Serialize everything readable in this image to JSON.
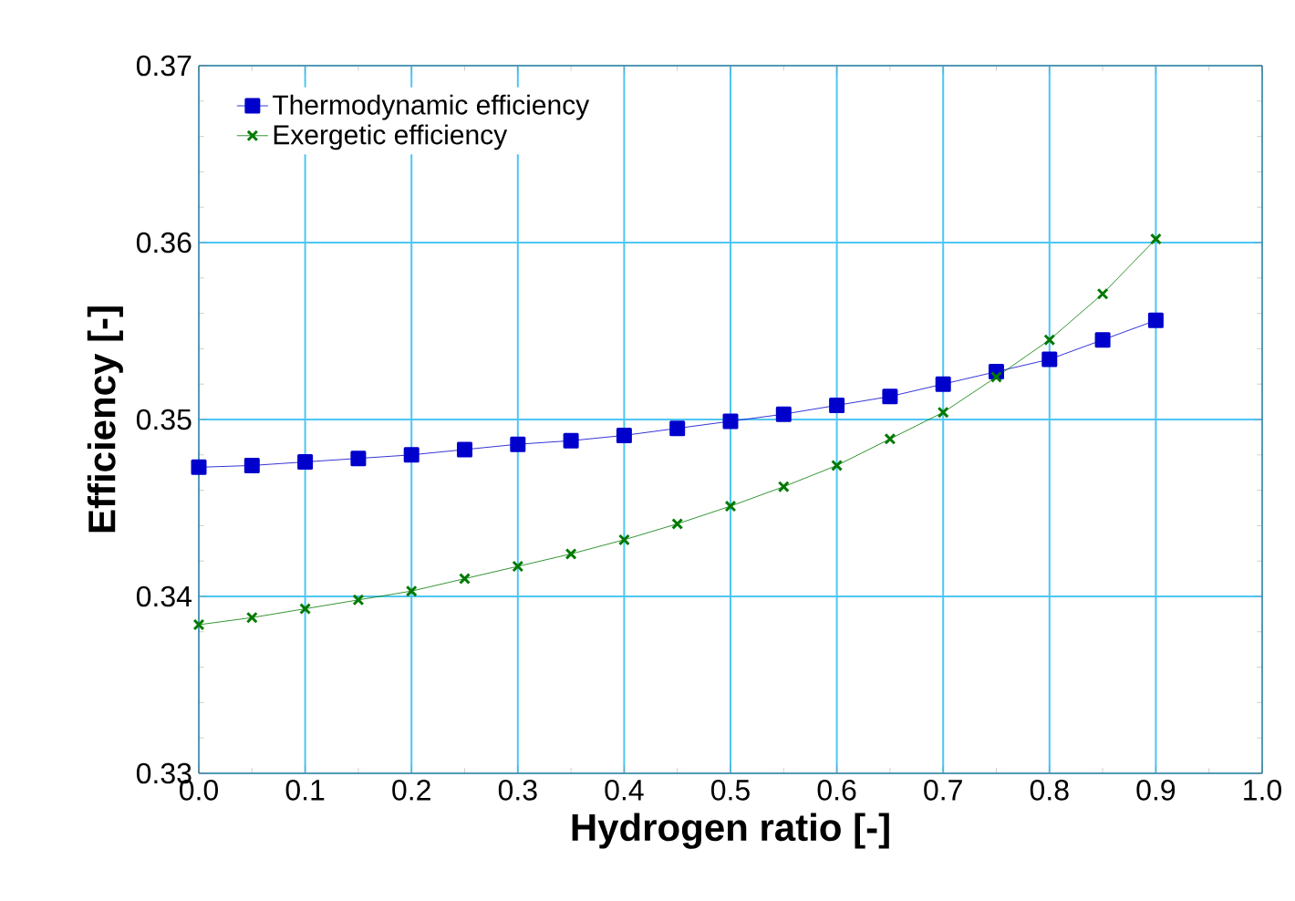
{
  "chart_data": {
    "type": "line",
    "xlabel": "Hydrogen ratio [-]",
    "ylabel": "Efficiency [-]",
    "x": [
      0.0,
      0.05,
      0.1,
      0.15,
      0.2,
      0.25,
      0.3,
      0.35,
      0.4,
      0.45,
      0.5,
      0.55,
      0.6,
      0.65,
      0.7,
      0.75,
      0.8,
      0.85,
      0.9
    ],
    "series": [
      {
        "name": "Thermodynamic efficiency",
        "color": "#0000cc",
        "marker": "square",
        "values": [
          0.3473,
          0.3474,
          0.3476,
          0.3478,
          0.348,
          0.3483,
          0.3486,
          0.3488,
          0.3491,
          0.3495,
          0.3499,
          0.3503,
          0.3508,
          0.3513,
          0.352,
          0.3527,
          0.3534,
          0.3545,
          0.3556
        ]
      },
      {
        "name": "Exergetic efficiency",
        "color": "#007a00",
        "marker": "cross",
        "values": [
          0.3384,
          0.3388,
          0.3393,
          0.3398,
          0.3403,
          0.341,
          0.3417,
          0.3424,
          0.3432,
          0.3441,
          0.3451,
          0.3462,
          0.3474,
          0.3489,
          0.3504,
          0.3524,
          0.3545,
          0.3571,
          0.3602
        ]
      }
    ],
    "xlim": [
      0,
      1
    ],
    "ylim": [
      0.33,
      0.37
    ],
    "xticks": [
      {
        "value": 0,
        "label": "0.0"
      },
      0.1,
      0.2,
      0.3,
      0.4,
      0.5,
      0.6,
      0.7,
      0.8,
      0.9,
      {
        "value": 1,
        "label": "1.0"
      }
    ],
    "yticks": [
      0.33,
      0.34,
      0.35,
      0.36,
      0.37
    ],
    "grid": true,
    "legend": "top left",
    "line_style": "solid"
  }
}
